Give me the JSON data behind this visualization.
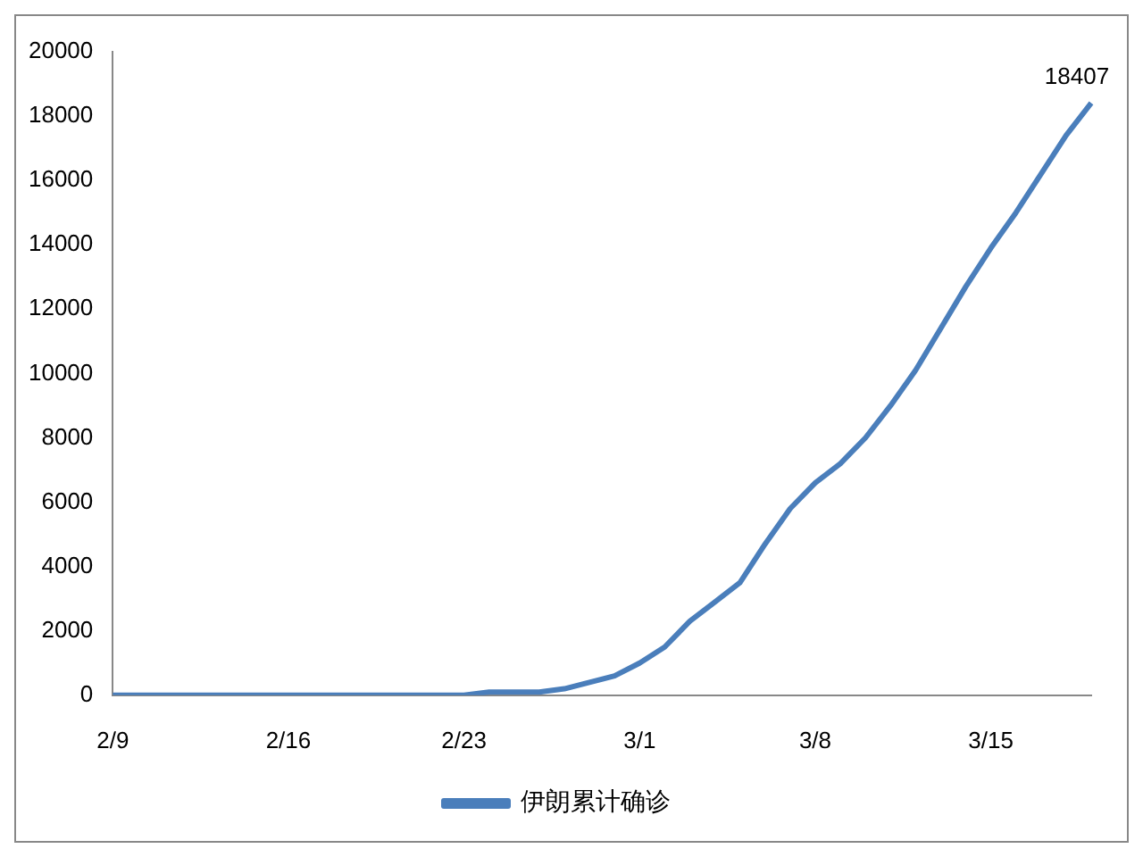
{
  "chart_data": {
    "type": "line",
    "categories": [
      "2/9",
      null,
      null,
      null,
      null,
      null,
      null,
      "2/16",
      null,
      null,
      null,
      null,
      null,
      null,
      "2/23",
      null,
      null,
      null,
      null,
      null,
      null,
      "3/1",
      null,
      null,
      null,
      null,
      null,
      null,
      "3/8",
      null,
      null,
      null,
      null,
      null,
      null,
      "3/15",
      null,
      null,
      null,
      null
    ],
    "series": [
      {
        "name": "伊朗累计确诊",
        "color": "#4a7ebb",
        "values": [
          0,
          0,
          0,
          0,
          0,
          0,
          0,
          0,
          0,
          0,
          0,
          0,
          0,
          0,
          0,
          100,
          100,
          100,
          200,
          400,
          600,
          1000,
          1500,
          2300,
          2900,
          3500,
          4700,
          5800,
          6600,
          7200,
          8000,
          9000,
          10100,
          11400,
          12700,
          13900,
          15000,
          16200,
          17400,
          18407
        ],
        "value_labels": [
          null,
          null,
          null,
          null,
          null,
          null,
          null,
          null,
          null,
          null,
          null,
          null,
          null,
          null,
          null,
          null,
          null,
          null,
          null,
          null,
          null,
          null,
          null,
          null,
          null,
          null,
          null,
          null,
          null,
          null,
          null,
          null,
          null,
          null,
          null,
          null,
          null,
          null,
          null,
          "18407"
        ]
      }
    ],
    "ylim": [
      0,
      20000
    ],
    "yticks": [
      0,
      2000,
      4000,
      6000,
      8000,
      10000,
      12000,
      14000,
      16000,
      18000,
      20000
    ],
    "legend": "bottom",
    "marker": "none"
  }
}
